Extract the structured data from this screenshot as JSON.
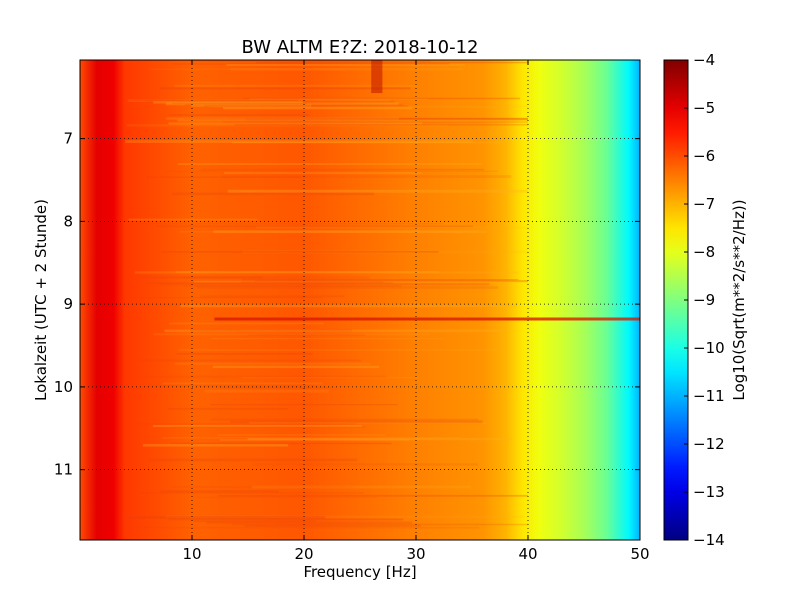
{
  "chart_data": {
    "type": "heatmap",
    "title": "BW ALTM E?Z: 2018-10-12",
    "xlabel": "Frequency [Hz]",
    "ylabel": "Lokalzeit (UTC + 2 Stunde)",
    "xlim": [
      0,
      50
    ],
    "ylim": [
      11.85,
      6.05
    ],
    "xticks": [
      10,
      20,
      30,
      40,
      50
    ],
    "yticks": [
      7,
      8,
      9,
      10,
      11
    ],
    "grid": true,
    "colormap": "jet",
    "colorbar": {
      "label": "Log10(Sqrt(m**2/s**2/Hz))",
      "range": [
        -14,
        -4
      ],
      "ticks": [
        -4,
        -5,
        -6,
        -7,
        -8,
        -9,
        -10,
        -11,
        -12,
        -13,
        -14
      ]
    },
    "spectrum_profile": [
      {
        "freq": 0.0,
        "value": -6.0
      },
      {
        "freq": 1.5,
        "value": -5.0
      },
      {
        "freq": 3.0,
        "value": -5.1
      },
      {
        "freq": 4.0,
        "value": -5.8
      },
      {
        "freq": 10.0,
        "value": -6.2
      },
      {
        "freq": 20.0,
        "value": -6.1
      },
      {
        "freq": 30.0,
        "value": -6.5
      },
      {
        "freq": 36.0,
        "value": -6.7
      },
      {
        "freq": 38.0,
        "value": -7.0
      },
      {
        "freq": 39.5,
        "value": -7.5
      },
      {
        "freq": 41.0,
        "value": -7.9
      },
      {
        "freq": 43.0,
        "value": -8.2
      },
      {
        "freq": 45.0,
        "value": -8.6
      },
      {
        "freq": 47.0,
        "value": -9.2
      },
      {
        "freq": 49.0,
        "value": -10.3
      },
      {
        "freq": 50.0,
        "value": -11.0
      }
    ],
    "notable_features": [
      {
        "time": 9.18,
        "freq_range": [
          12,
          50
        ],
        "description": "strong horizontal band"
      },
      {
        "time": 6.2,
        "freq_range": [
          26,
          27
        ],
        "description": "short vertical streak"
      }
    ]
  }
}
